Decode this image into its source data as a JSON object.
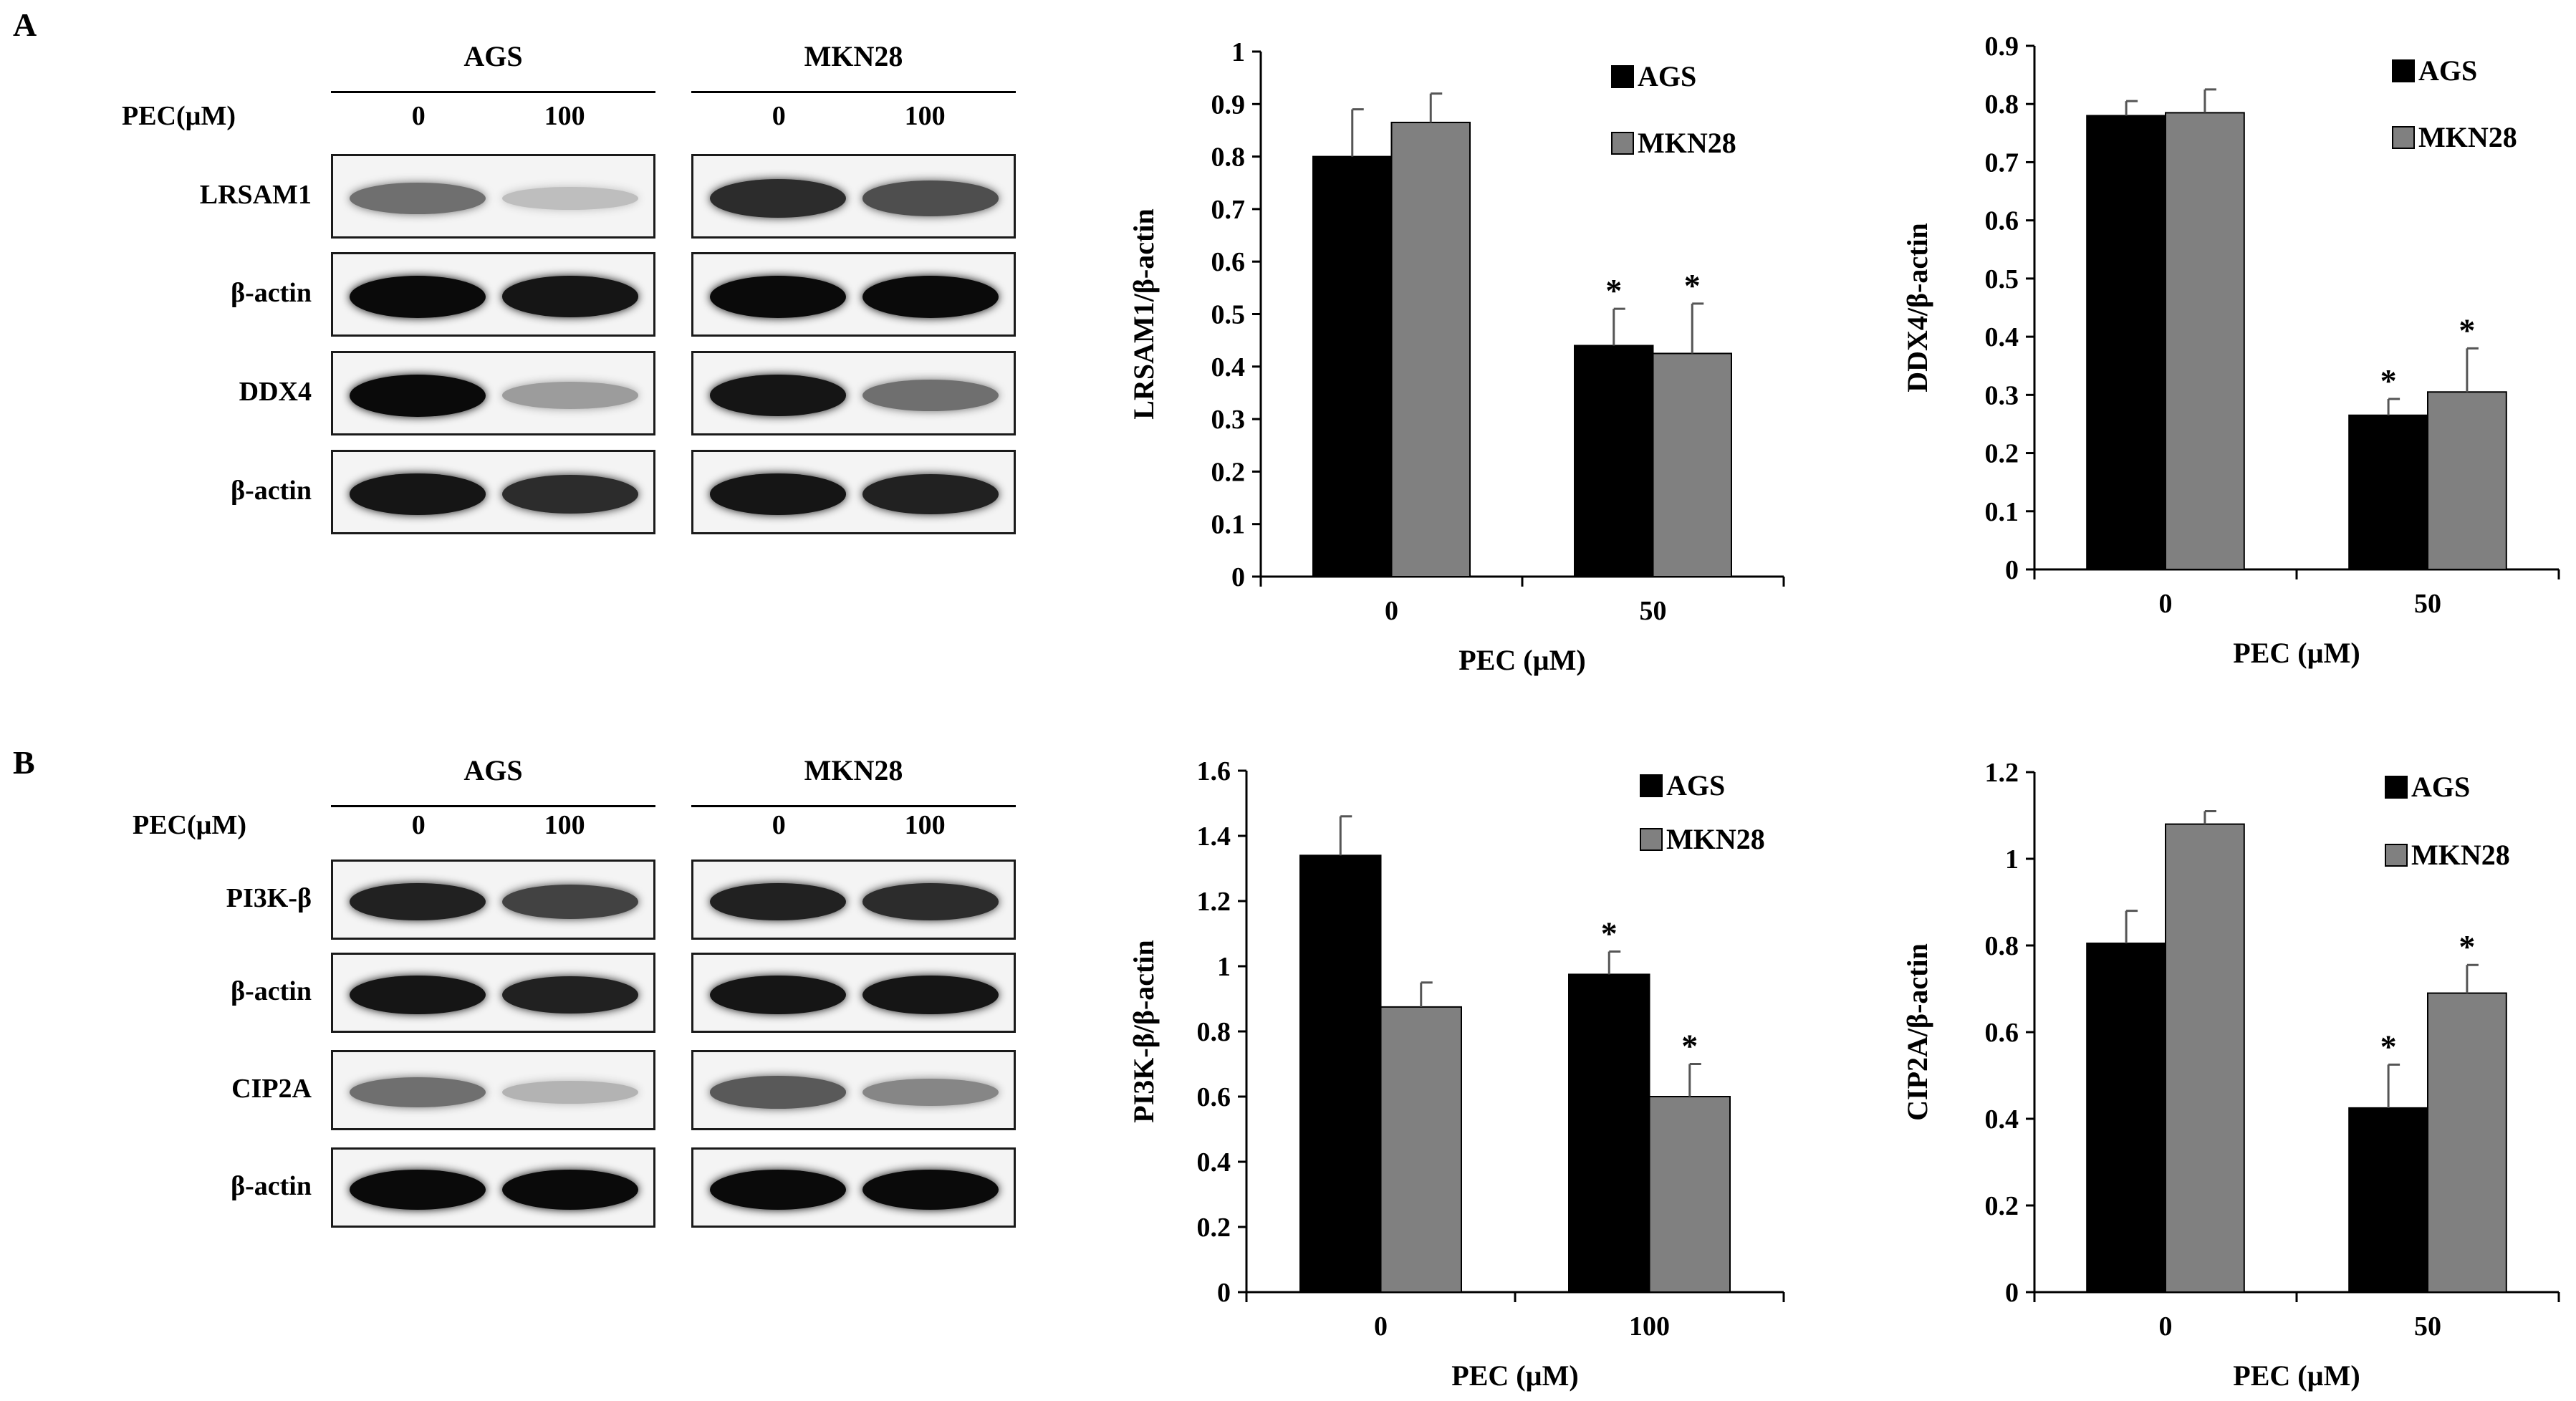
{
  "panels": {
    "A": {
      "letter": "A"
    },
    "B": {
      "letter": "B"
    }
  },
  "blots": [
    {
      "cell_lines": [
        "AGS",
        "MKN28"
      ],
      "treatment_label": "PEC(µM)",
      "doses": [
        "0",
        "100",
        "0",
        "100"
      ],
      "rows": [
        {
          "label": "LRSAM1",
          "intensity": [
            0.55,
            0.2,
            0.85,
            0.7
          ]
        },
        {
          "label": "β-actin",
          "intensity": [
            1.0,
            0.95,
            1.0,
            1.0
          ]
        },
        {
          "label": "DDX4",
          "intensity": [
            1.0,
            0.35,
            0.95,
            0.55
          ]
        },
        {
          "label": "β-actin",
          "intensity": [
            0.95,
            0.85,
            0.95,
            0.9
          ]
        }
      ]
    },
    {
      "cell_lines": [
        "AGS",
        "MKN28"
      ],
      "treatment_label": "PEC(µM)",
      "doses": [
        "0",
        "100",
        "0",
        "100"
      ],
      "rows": [
        {
          "label": "PI3K-β",
          "intensity": [
            0.9,
            0.75,
            0.9,
            0.85
          ]
        },
        {
          "label": "β-actin",
          "intensity": [
            0.95,
            0.9,
            0.95,
            0.95
          ]
        },
        {
          "label": "CIP2A",
          "intensity": [
            0.55,
            0.25,
            0.65,
            0.45
          ]
        },
        {
          "label": "β-actin",
          "intensity": [
            1.0,
            1.0,
            1.0,
            1.0
          ]
        }
      ]
    }
  ],
  "chart_data": [
    {
      "type": "bar",
      "categories": [
        "0",
        "50"
      ],
      "series": [
        {
          "name": "AGS",
          "color": "#000000",
          "values": [
            0.8,
            0.44
          ],
          "errors": [
            0.09,
            0.07
          ],
          "significant": [
            false,
            true
          ]
        },
        {
          "name": "MKN28",
          "color": "#808080",
          "values": [
            0.865,
            0.425
          ],
          "errors": [
            0.055,
            0.095
          ],
          "significant": [
            false,
            true
          ]
        }
      ],
      "ylabel": "LRSAM1/β-actin",
      "xlabel": "PEC (µM)",
      "ylim": [
        0,
        1
      ],
      "yticks": [
        "0",
        "0.1",
        "0.2",
        "0.3",
        "0.4",
        "0.5",
        "0.6",
        "0.7",
        "0.8",
        "0.9",
        "1"
      ],
      "significance_mark": "*",
      "legend_position": "top-right",
      "grid": false
    },
    {
      "type": "bar",
      "categories": [
        "0",
        "50"
      ],
      "series": [
        {
          "name": "AGS",
          "color": "#000000",
          "values": [
            0.78,
            0.265
          ],
          "errors": [
            0.025,
            0.028
          ],
          "significant": [
            false,
            true
          ]
        },
        {
          "name": "MKN28",
          "color": "#808080",
          "values": [
            0.785,
            0.305
          ],
          "errors": [
            0.04,
            0.075
          ],
          "significant": [
            false,
            true
          ]
        }
      ],
      "ylabel": "DDX4/β-actin",
      "xlabel": "PEC (µM)",
      "ylim": [
        0,
        0.9
      ],
      "yticks": [
        "0",
        "0.1",
        "0.2",
        "0.3",
        "0.4",
        "0.5",
        "0.6",
        "0.7",
        "0.8",
        "0.9"
      ],
      "significance_mark": "*",
      "legend_position": "top-right",
      "grid": false
    },
    {
      "type": "bar",
      "categories": [
        "0",
        "100"
      ],
      "series": [
        {
          "name": "AGS",
          "color": "#000000",
          "values": [
            1.34,
            0.975
          ],
          "errors": [
            0.12,
            0.07
          ],
          "significant": [
            false,
            true
          ]
        },
        {
          "name": "MKN28",
          "color": "#808080",
          "values": [
            0.875,
            0.6
          ],
          "errors": [
            0.075,
            0.1
          ],
          "significant": [
            false,
            true
          ]
        }
      ],
      "ylabel": "PI3K-β/β-actin",
      "xlabel": "PEC (µM)",
      "ylim": [
        0,
        1.6
      ],
      "yticks": [
        "0",
        "0.2",
        "0.4",
        "0.6",
        "0.8",
        "1",
        "1.2",
        "1.4",
        "1.6"
      ],
      "significance_mark": "*",
      "legend_position": "top-right",
      "grid": false
    },
    {
      "type": "bar",
      "categories": [
        "0",
        "50"
      ],
      "series": [
        {
          "name": "AGS",
          "color": "#000000",
          "values": [
            0.805,
            0.425
          ],
          "errors": [
            0.075,
            0.1
          ],
          "significant": [
            false,
            true
          ]
        },
        {
          "name": "MKN28",
          "color": "#808080",
          "values": [
            1.08,
            0.69
          ],
          "errors": [
            0.03,
            0.065
          ],
          "significant": [
            false,
            true
          ]
        }
      ],
      "ylabel": "CIP2A/β-actin",
      "xlabel": "PEC (µM)",
      "ylim": [
        0,
        1.2
      ],
      "yticks": [
        "0",
        "0.2",
        "0.4",
        "0.6",
        "0.8",
        "1",
        "1.2"
      ],
      "significance_mark": "*",
      "legend_position": "top-right",
      "grid": false
    }
  ]
}
